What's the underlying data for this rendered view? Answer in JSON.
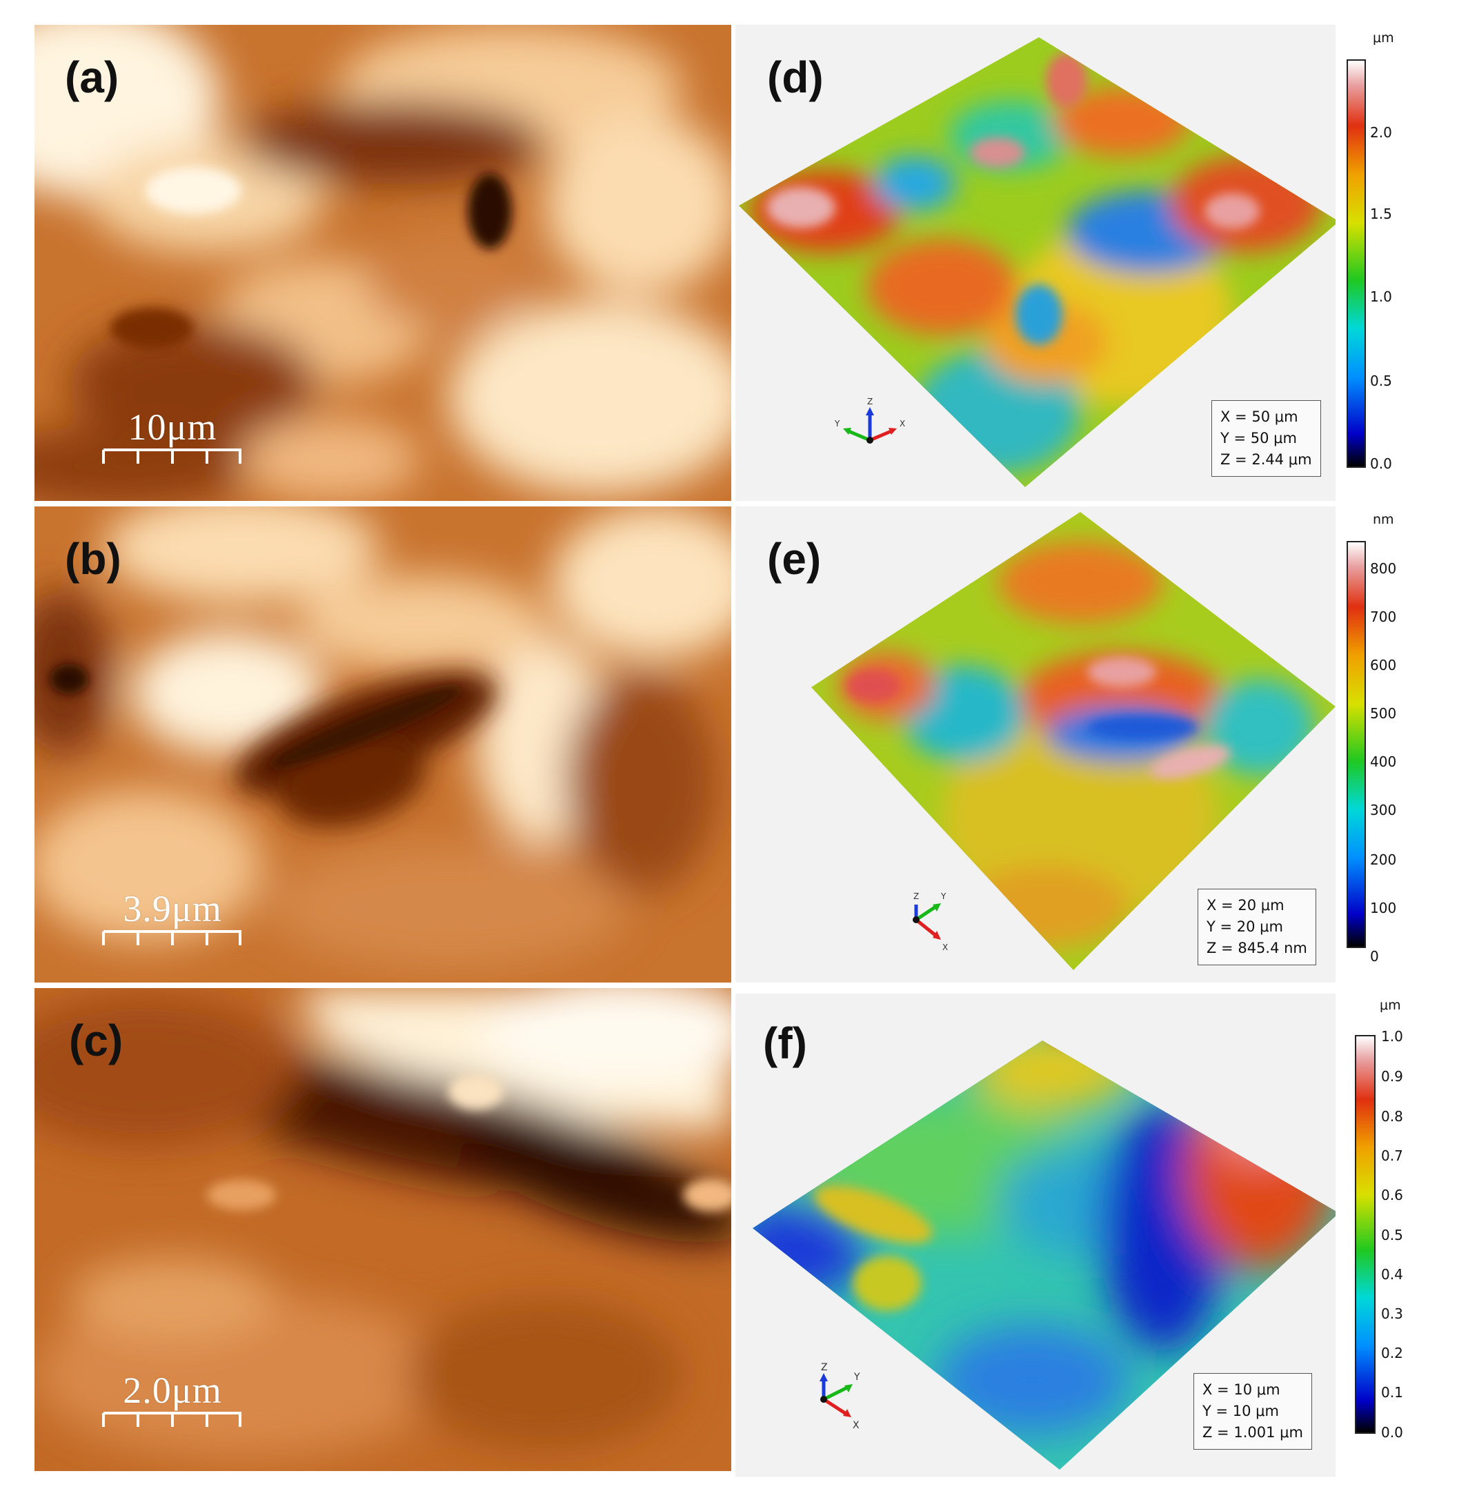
{
  "panels": {
    "a": {
      "label": "(a)",
      "scale_bar": "10μm"
    },
    "b": {
      "label": "(b)",
      "scale_bar": "3.9μm"
    },
    "c": {
      "label": "(c)",
      "scale_bar": "2.0μm"
    },
    "d": {
      "label": "(d)",
      "dims": [
        "X = 50 μm",
        "Y = 50 μm",
        "Z = 2.44 μm"
      ],
      "colorbar": {
        "unit": "μm",
        "ticks": [
          "0.0",
          "0.5",
          "1.0",
          "1.5",
          "2.0"
        ]
      },
      "axes": [
        "Z",
        "Y",
        "X"
      ]
    },
    "e": {
      "label": "(e)",
      "dims": [
        "X = 20 μm",
        "Y = 20 μm",
        "Z = 845.4 nm"
      ],
      "colorbar": {
        "unit": "nm",
        "ticks": [
          "0",
          "100",
          "200",
          "300",
          "400",
          "500",
          "600",
          "700",
          "800"
        ]
      },
      "axes": [
        "Z",
        "Y",
        "X"
      ]
    },
    "f": {
      "label": "(f)",
      "dims": [
        "X = 10 μm",
        "Y = 10 μm",
        "Z = 1.001 μm"
      ],
      "colorbar": {
        "unit": "μm",
        "ticks": [
          "0.0",
          "0.1",
          "0.2",
          "0.3",
          "0.4",
          "0.5",
          "0.6",
          "0.7",
          "0.8",
          "0.9",
          "1.0"
        ]
      },
      "axes": [
        "Z",
        "Y",
        "X"
      ]
    }
  },
  "colors": {
    "afm_base": "#c86f2a",
    "afm_light": "#fff3dc",
    "afm_dark": "#3a1402"
  }
}
